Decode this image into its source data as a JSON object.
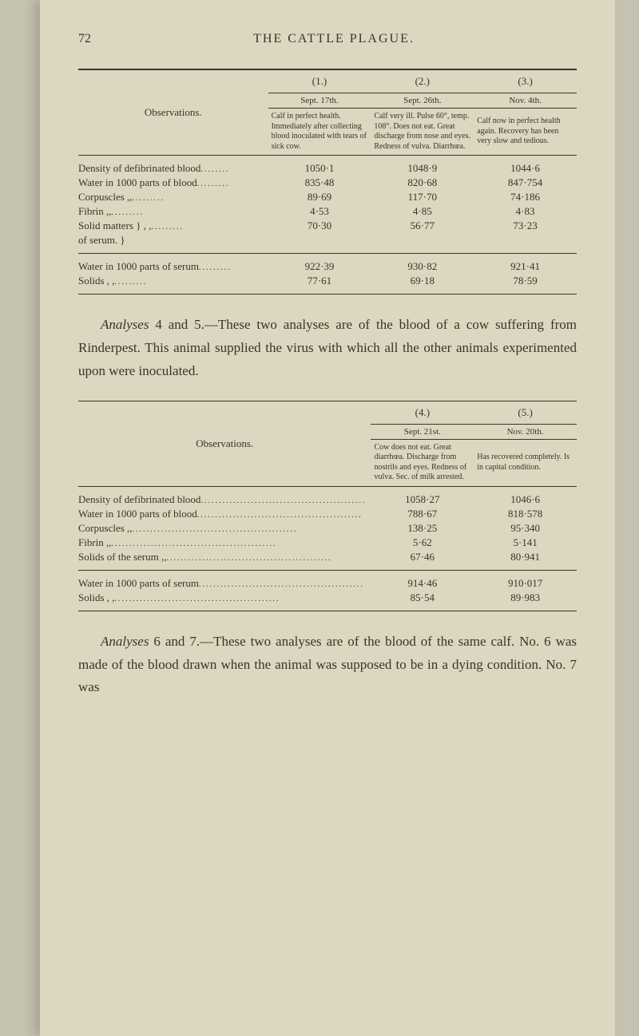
{
  "page_number": "72",
  "page_title": "THE CATTLE PLAGUE.",
  "table1": {
    "obs_header": "Observations.",
    "cols": [
      {
        "num": "(1.)",
        "date": "Sept. 17th.",
        "desc": "Calf in perfect health. Immediately after collecting blood inoculated with tears of sick cow."
      },
      {
        "num": "(2.)",
        "date": "Sept. 26th.",
        "desc": "Calf very ill. Pulse 60°, temp. 108°. Does not eat. Great discharge from nose and eyes. Redness of vulva. Diarrhœa."
      },
      {
        "num": "(3.)",
        "date": "Nov. 4th.",
        "desc": "Calf now in perfect health again. Recovery has been very slow and tedious."
      }
    ],
    "rows1": [
      {
        "label": "Density of defibrinated blood",
        "fill": "........",
        "v": [
          "1050·1",
          "1048·9",
          "1044·6"
        ]
      },
      {
        "label": "Water in 1000 parts of blood",
        "fill": ".........",
        "v": [
          "835·48",
          "820·68",
          "847·754"
        ]
      },
      {
        "label": "Corpuscles         ,,",
        "fill": "         .........",
        "v": [
          "89·69",
          "117·70",
          "74·186"
        ]
      },
      {
        "label": "Fibrin              ,,",
        "fill": "         .........",
        "v": [
          "4·53",
          "4·85",
          "4·83"
        ]
      },
      {
        "label": "Solid matters }   , ,",
        "fill": "         .........",
        "v": [
          "70·30",
          "56·77",
          "73·23"
        ]
      },
      {
        "label": "  of serum.    }",
        "fill": "",
        "v": [
          "",
          "",
          ""
        ]
      }
    ],
    "rows2": [
      {
        "label": "Water in 1000 parts of serum",
        "fill": ".........",
        "v": [
          "922·39",
          "930·82",
          "921·41"
        ]
      },
      {
        "label": "Solids               , ,",
        "fill": "          .........",
        "v": [
          "77·61",
          "69·18",
          "78·59"
        ]
      }
    ]
  },
  "para1": "Analyses 4 and 5.—These two analyses are of the blood of a cow suffering from Rinderpest. This animal supplied the virus with which all the other animals experimented upon were inoculated.",
  "para1_lead_italic": "Analyses",
  "para1_lead_rest": " 4 and 5.",
  "para1_rest": "—These two analyses are of the blood of a cow suffering from Rinderpest. This animal supplied the virus with which all the other animals experimented upon were inoculated.",
  "table2": {
    "obs_header": "Observations.",
    "cols": [
      {
        "num": "(4.)",
        "date": "Sept. 21st.",
        "desc": "Cow does not eat. Great diarrhœa. Discharge from nostrils and eyes. Redness of vulva. Sec. of milk arrested."
      },
      {
        "num": "(5.)",
        "date": "Nov. 20th.",
        "desc": "Has recovered completely. Is in capital condition."
      }
    ],
    "rows1": [
      {
        "label": "Density of defibrinated blood",
        "v": [
          "1058·27",
          "1046·6"
        ]
      },
      {
        "label": "Water in 1000 parts of blood",
        "v": [
          "788·67",
          "818·578"
        ]
      },
      {
        "label": "Corpuscles          ,,",
        "v": [
          "138·25",
          "95·340"
        ]
      },
      {
        "label": "Fibrin               ,,",
        "v": [
          "5·62",
          "5·141"
        ]
      },
      {
        "label": "Solids of the serum  ,,",
        "v": [
          "67·46",
          "80·941"
        ]
      }
    ],
    "rows2": [
      {
        "label": "Water in 1000 parts of serum",
        "v": [
          "914·46",
          "910·017"
        ]
      },
      {
        "label": "Solids               , ,",
        "v": [
          "85·54",
          "89·983"
        ]
      }
    ]
  },
  "para2_lead_italic": "Analyses",
  "para2_lead_rest": " 6 and 7.",
  "para2_rest": "—These two analyses are of the blood of the same calf. No. 6 was made of the blood drawn when the animal was supposed to be in a dying condition. No. 7 was"
}
